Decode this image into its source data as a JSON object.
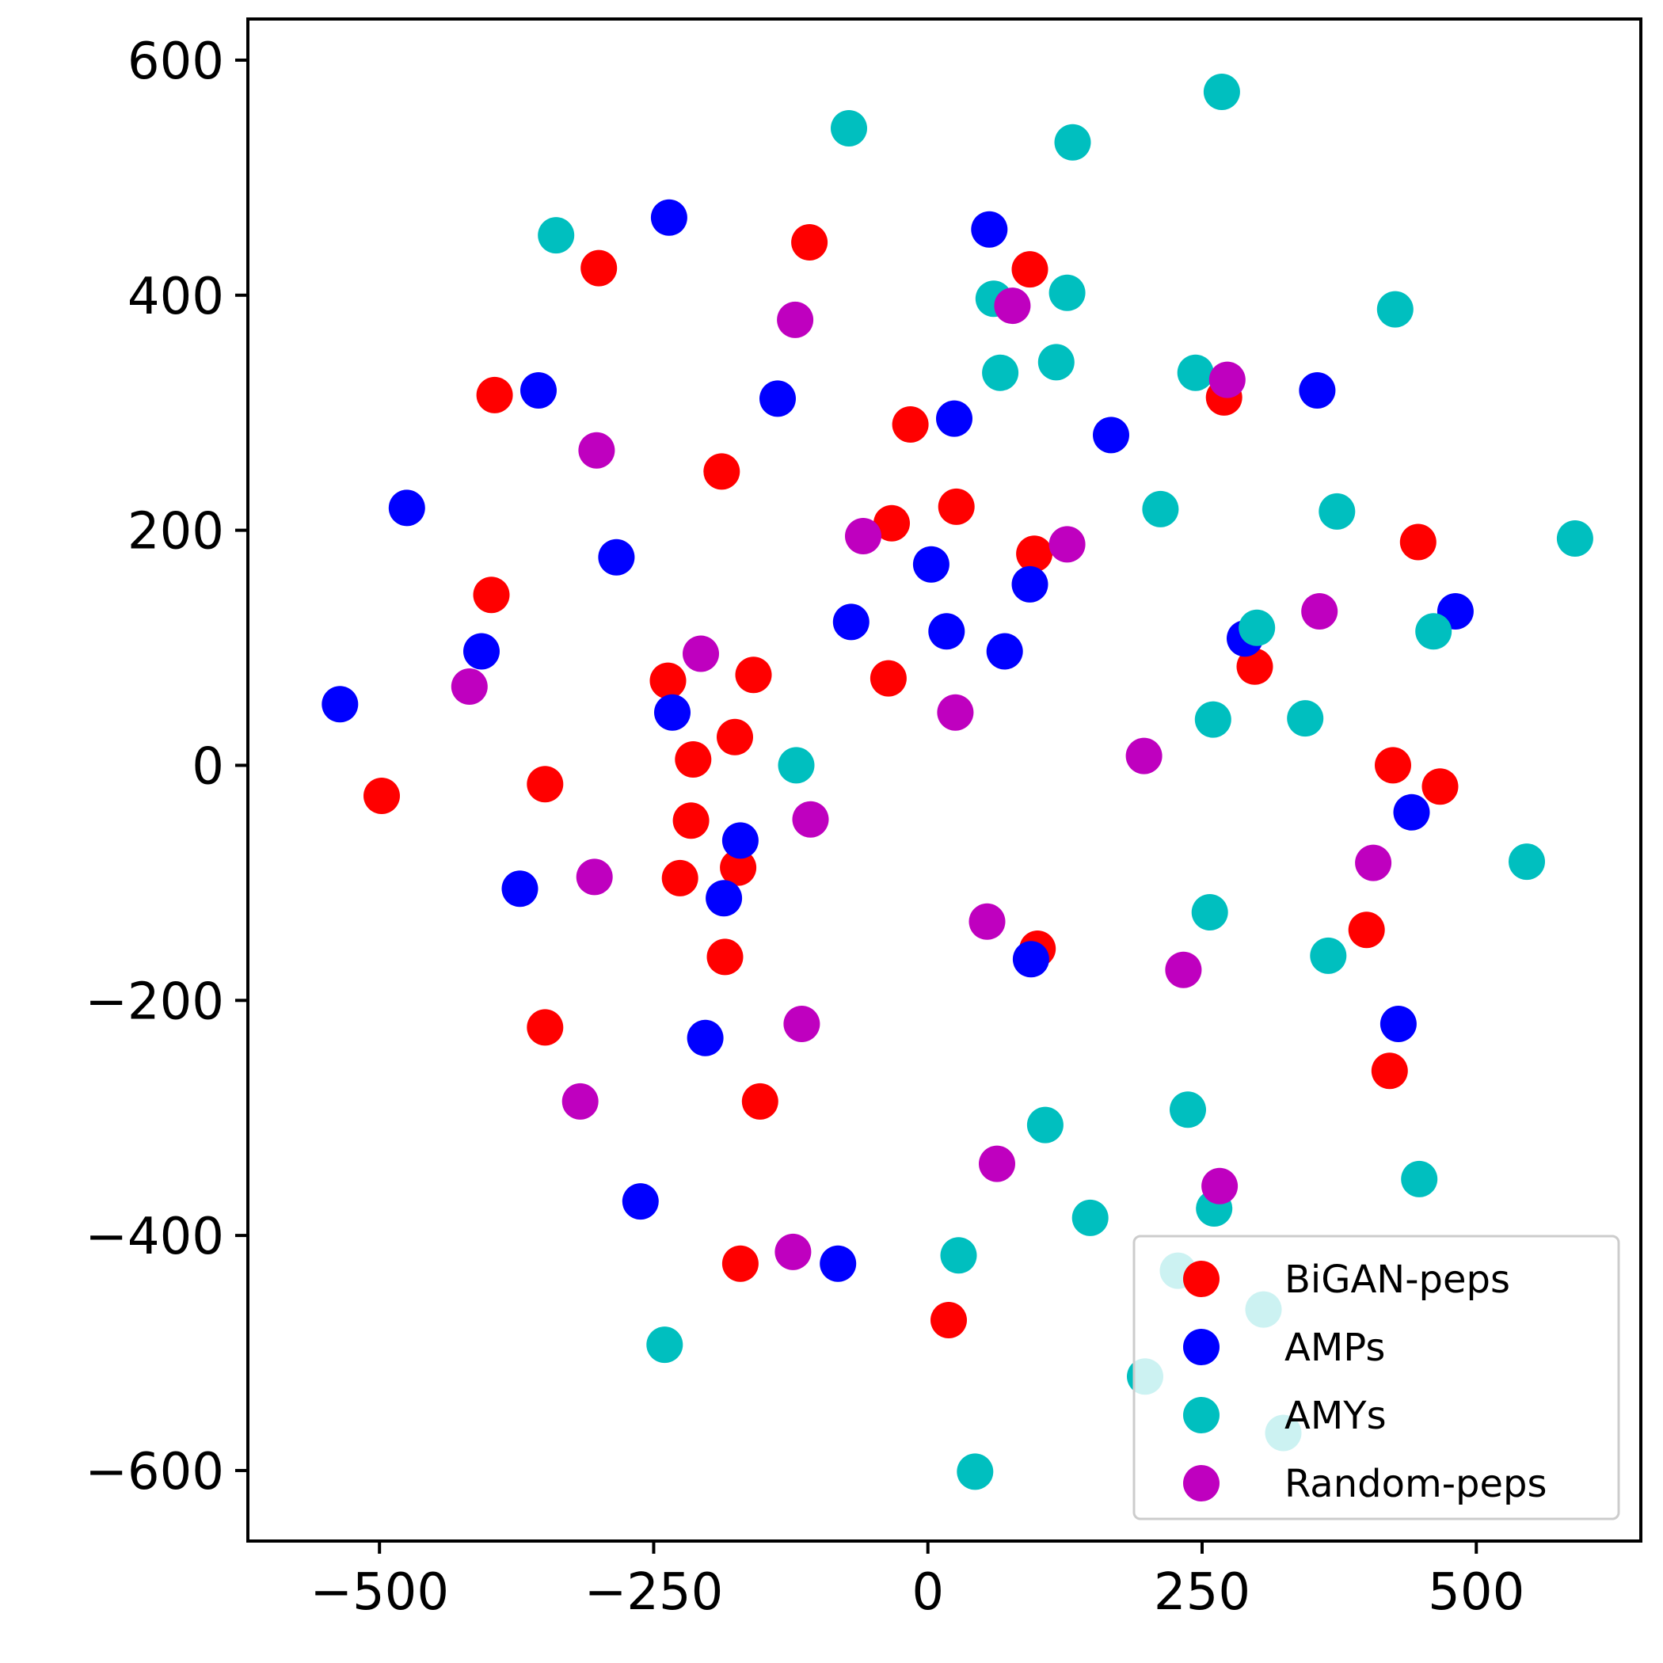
{
  "chart_data": {
    "type": "scatter",
    "xlim": [
      -620,
      650
    ],
    "ylim": [
      -660,
      635
    ],
    "x_ticks": [
      -500,
      -250,
      0,
      250,
      500
    ],
    "y_ticks": [
      600,
      400,
      200,
      0,
      -200,
      -400,
      -600
    ],
    "x_tick_labels": [
      "−500",
      "−250",
      "0",
      "250",
      "500"
    ],
    "y_tick_labels": [
      "600",
      "400",
      "200",
      "0",
      "−200",
      "−400",
      "−600"
    ],
    "grid": false,
    "legend_position": "lower-right",
    "series": [
      {
        "name": "BiGAN-peps",
        "color": "#ff0000",
        "points": [
          [
            -300,
            423
          ],
          [
            -108,
            445
          ],
          [
            -395,
            315
          ],
          [
            -188,
            250
          ],
          [
            -16,
            290
          ],
          [
            -33,
            206
          ],
          [
            26,
            220
          ],
          [
            -398,
            145
          ],
          [
            -237,
            72
          ],
          [
            -159,
            77
          ],
          [
            -176,
            24
          ],
          [
            -214,
            5
          ],
          [
            -498,
            -26
          ],
          [
            -349,
            -16
          ],
          [
            -216,
            -47
          ],
          [
            -226,
            -96
          ],
          [
            -173,
            -87
          ],
          [
            -185,
            -163
          ],
          [
            -349,
            -223
          ],
          [
            -153,
            -286
          ],
          [
            -171,
            -424
          ],
          [
            -36,
            74
          ],
          [
            93,
            422
          ],
          [
            97,
            180
          ],
          [
            270,
            313
          ],
          [
            298,
            84
          ],
          [
            447,
            190
          ],
          [
            424,
            0
          ],
          [
            467,
            -18
          ],
          [
            400,
            -140
          ],
          [
            100,
            -156
          ],
          [
            421,
            -260
          ],
          [
            19,
            -472
          ]
        ]
      },
      {
        "name": "AMPs",
        "color": "#0000ff",
        "points": [
          [
            -236,
            466
          ],
          [
            -355,
            319
          ],
          [
            -137,
            312
          ],
          [
            -475,
            219
          ],
          [
            -284,
            177
          ],
          [
            -407,
            97
          ],
          [
            -536,
            52
          ],
          [
            -233,
            45
          ],
          [
            -171,
            -64
          ],
          [
            -186,
            -113
          ],
          [
            -372,
            -105
          ],
          [
            -203,
            -232
          ],
          [
            -262,
            -371
          ],
          [
            -82,
            -424
          ],
          [
            -70,
            122
          ],
          [
            3,
            171
          ],
          [
            17,
            114
          ],
          [
            70,
            97
          ],
          [
            93,
            154
          ],
          [
            24,
            295
          ],
          [
            56,
            456
          ],
          [
            167,
            281
          ],
          [
            355,
            319
          ],
          [
            289,
            108
          ],
          [
            481,
            131
          ],
          [
            441,
            -40
          ],
          [
            429,
            -220
          ],
          [
            94,
            -165
          ]
        ]
      },
      {
        "name": "AMYs",
        "color": "#00bfbf",
        "points": [
          [
            -72,
            542
          ],
          [
            268,
            573
          ],
          [
            132,
            530
          ],
          [
            -339,
            451
          ],
          [
            60,
            397
          ],
          [
            127,
            402
          ],
          [
            426,
            388
          ],
          [
            66,
            334
          ],
          [
            117,
            343
          ],
          [
            244,
            334
          ],
          [
            212,
            218
          ],
          [
            373,
            216
          ],
          [
            590,
            193
          ],
          [
            300,
            117
          ],
          [
            461,
            114
          ],
          [
            260,
            39
          ],
          [
            344,
            40
          ],
          [
            -120,
            0
          ],
          [
            546,
            -82
          ],
          [
            257,
            -125
          ],
          [
            365,
            -162
          ],
          [
            237,
            -293
          ],
          [
            107,
            -306
          ],
          [
            448,
            -352
          ],
          [
            261,
            -377
          ],
          [
            148,
            -385
          ],
          [
            28,
            -417
          ],
          [
            -240,
            -493
          ],
          [
            43,
            -601
          ],
          [
            228,
            -430
          ],
          [
            306,
            -463
          ],
          [
            198,
            -520
          ],
          [
            324,
            -568
          ]
        ]
      },
      {
        "name": "Random-peps",
        "color": "#bf00bf",
        "points": [
          [
            -121,
            379
          ],
          [
            77,
            391
          ],
          [
            273,
            328
          ],
          [
            -302,
            268
          ],
          [
            -59,
            195
          ],
          [
            127,
            188
          ],
          [
            357,
            131
          ],
          [
            -207,
            95
          ],
          [
            -418,
            67
          ],
          [
            25,
            45
          ],
          [
            197,
            8
          ],
          [
            -107,
            -46
          ],
          [
            -304,
            -95
          ],
          [
            406,
            -83
          ],
          [
            54,
            -133
          ],
          [
            233,
            -174
          ],
          [
            -115,
            -220
          ],
          [
            -317,
            -286
          ],
          [
            63,
            -339
          ],
          [
            266,
            -358
          ],
          [
            -123,
            -414
          ]
        ]
      }
    ]
  }
}
